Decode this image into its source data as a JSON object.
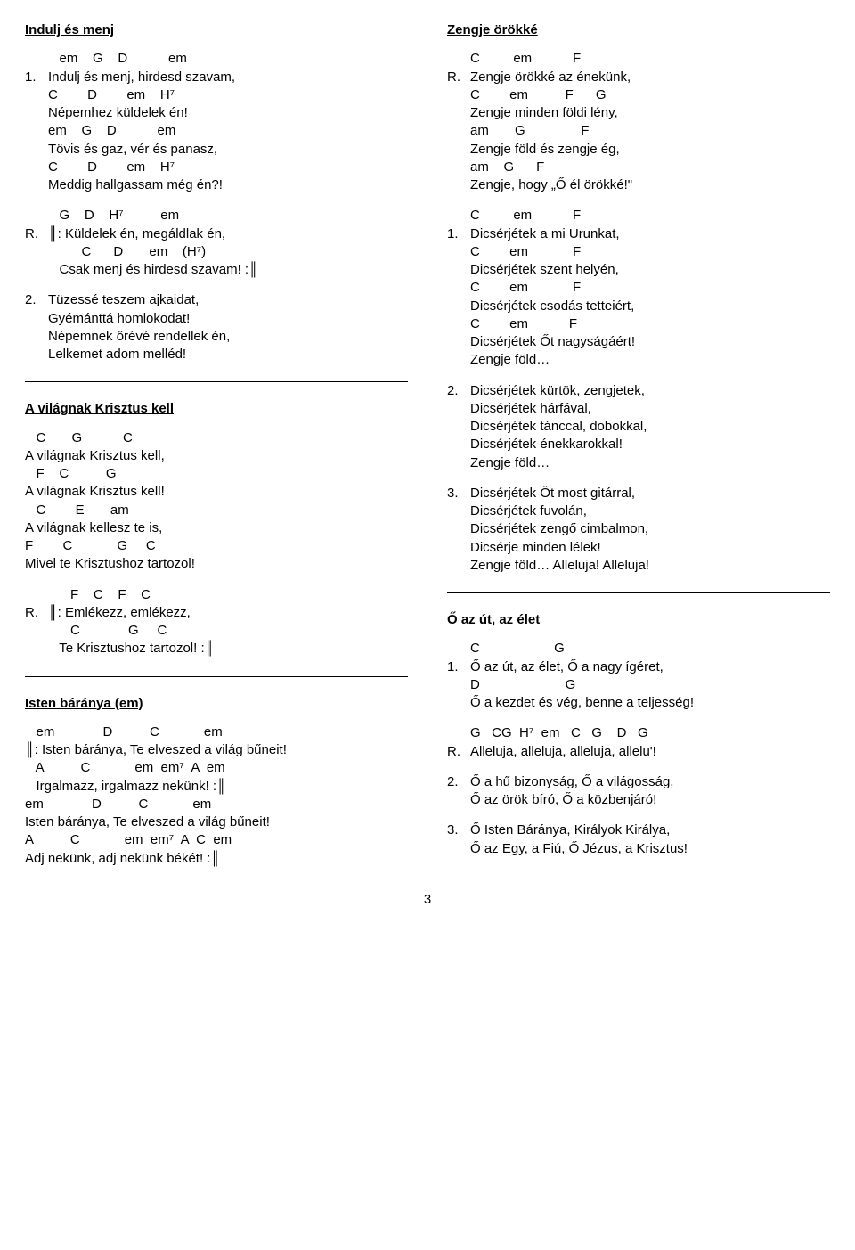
{
  "page_number": "3",
  "left": {
    "song1": {
      "title": "Indulj és menj",
      "block1": [
        {
          "n": "",
          "t": "   em    G    D           em"
        },
        {
          "n": "1.",
          "t": "Indulj és menj, hirdesd szavam,"
        },
        {
          "n": "",
          "t": "C        D        em    H⁷"
        },
        {
          "n": "",
          "t": "Népemhez küldelek én!"
        },
        {
          "n": "",
          "t": "em    G    D           em"
        },
        {
          "n": "",
          "t": "Tövis és gaz, vér és panasz,"
        },
        {
          "n": "",
          "t": "C        D        em    H⁷"
        },
        {
          "n": "",
          "t": "Meddig hallgassam még én?!"
        }
      ],
      "block2": [
        {
          "n": "",
          "t": "   G    D    H⁷          em"
        },
        {
          "n": "R.",
          "t": "║: Küldelek én, megáldlak én,"
        },
        {
          "n": "",
          "t": "         C      D       em    (H⁷)"
        },
        {
          "n": "",
          "t": "   Csak menj és hirdesd szavam! :║"
        }
      ],
      "block3": [
        {
          "n": "2.",
          "t": "Tüzessé teszem ajkaidat,"
        },
        {
          "n": "",
          "t": "Gyémánttá homlokodat!"
        },
        {
          "n": "",
          "t": "Népemnek őrévé rendellek én,"
        },
        {
          "n": "",
          "t": "Lelkemet adom melléd!"
        }
      ]
    },
    "song2": {
      "title": "A világnak Krisztus kell",
      "block1": [
        "   C       G           C",
        "A világnak Krisztus kell,",
        "   F    C          G",
        "A világnak Krisztus kell!",
        "   C        E       am",
        "A világnak kellesz te is,",
        "F        C            G     C",
        "Mivel te Krisztushoz tartozol!"
      ],
      "block2": [
        {
          "n": "",
          "t": "      F    C    F    C"
        },
        {
          "n": "R.",
          "t": "║: Emlékezz, emlékezz,"
        },
        {
          "n": "",
          "t": "      C             G     C"
        },
        {
          "n": "",
          "t": "   Te Krisztushoz tartozol! :║"
        }
      ]
    },
    "song3": {
      "title": "Isten báránya (em)",
      "block1": [
        "   em             D          C            em",
        "║: Isten báránya, Te elveszed a világ bűneit!",
        "   A          C            em  em⁷  A  em",
        "   Irgalmazz, irgalmazz nekünk! :║",
        "em             D          C            em",
        "Isten báránya, Te elveszed a világ bűneit!",
        "A          C            em  em⁷  A  C  em",
        "Adj nekünk, adj nekünk békét! :║"
      ]
    }
  },
  "right": {
    "song1": {
      "title": "Zengje örökké",
      "block1": [
        {
          "n": "",
          "t": "C         em           F"
        },
        {
          "n": "R.",
          "t": "Zengje örökké az énekünk,"
        },
        {
          "n": "",
          "t": "C        em          F      G"
        },
        {
          "n": "",
          "t": "Zengje minden földi lény,"
        },
        {
          "n": "",
          "t": "am       G               F"
        },
        {
          "n": "",
          "t": "Zengje föld és zengje ég,"
        },
        {
          "n": "",
          "t": "am    G      F"
        },
        {
          "n": "",
          "t": "Zengje, hogy „Ő él örökké!\""
        }
      ],
      "block2": [
        {
          "n": "",
          "t": "C         em           F"
        },
        {
          "n": "1.",
          "t": "Dicsérjétek a mi Urunkat,"
        },
        {
          "n": "",
          "t": "C        em            F"
        },
        {
          "n": "",
          "t": "Dicsérjétek szent helyén,"
        },
        {
          "n": "",
          "t": "C        em            F"
        },
        {
          "n": "",
          "t": "Dicsérjétek csodás tetteiért,"
        },
        {
          "n": "",
          "t": "C        em           F"
        },
        {
          "n": "",
          "t": "Dicsérjétek Őt nagyságáért!"
        },
        {
          "n": "",
          "t": "Zengje föld…"
        }
      ],
      "block3": [
        {
          "n": "2.",
          "t": "Dicsérjétek kürtök, zengjetek,"
        },
        {
          "n": "",
          "t": "Dicsérjétek hárfával,"
        },
        {
          "n": "",
          "t": "Dicsérjétek tánccal, dobokkal,"
        },
        {
          "n": "",
          "t": "Dicsérjétek énekkarokkal!"
        },
        {
          "n": "",
          "t": "Zengje föld…"
        }
      ],
      "block4": [
        {
          "n": "3.",
          "t": "Dicsérjétek Őt most gitárral,"
        },
        {
          "n": "",
          "t": "Dicsérjétek fuvolán,"
        },
        {
          "n": "",
          "t": "Dicsérjétek zengő cimbalmon,"
        },
        {
          "n": "",
          "t": "Dicsérje minden lélek!"
        },
        {
          "n": "",
          "t": "Zengje föld… Alleluja! Alleluja!"
        }
      ]
    },
    "song2": {
      "title": "Ő az út, az élet",
      "block1": [
        {
          "n": "",
          "t": "C                    G"
        },
        {
          "n": "1.",
          "t": "Ő az út, az élet, Ő a nagy ígéret,"
        },
        {
          "n": "",
          "t": "D                       G"
        },
        {
          "n": "",
          "t": "Ő a kezdet és vég, benne a teljesség!"
        }
      ],
      "block2": [
        {
          "n": "",
          "t": "G   CG  H⁷  em   C   G    D   G"
        },
        {
          "n": "R.",
          "t": "Alleluja, alleluja, alleluja, allelu'!"
        }
      ],
      "block3": [
        {
          "n": "2.",
          "t": "Ő a hű bizonyság, Ő a világosság,"
        },
        {
          "n": "",
          "t": "Ő az örök bíró, Ő a közbenjáró!"
        }
      ],
      "block4": [
        {
          "n": "3.",
          "t": "Ő Isten Báránya, Királyok Királya,"
        },
        {
          "n": "",
          "t": "Ő az Egy, a Fiú, Ő Jézus, a Krisztus!"
        }
      ]
    }
  }
}
